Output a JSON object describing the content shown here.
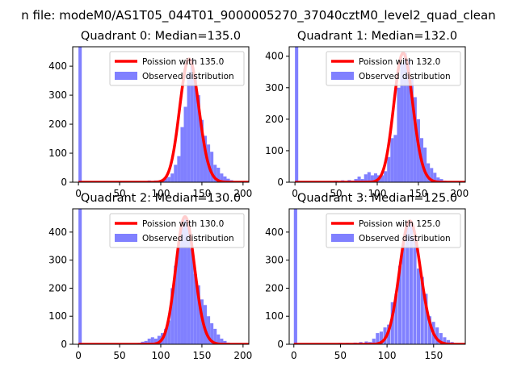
{
  "figure": {
    "suptitle": "n file: modeM0/AS1T05_044T01_9000005270_37040cztM0_level2_quad_clean"
  },
  "colors": {
    "hist": "#8080ff",
    "poisson": "#ff0000",
    "axis": "#000000"
  },
  "chart_data": [
    {
      "type": "bar",
      "title": "Quadrant 0: Median=135.0",
      "xlabel": "",
      "ylabel": "",
      "xlim": [
        -7,
        207
      ],
      "ylim": [
        0,
        467
      ],
      "xticks": [
        0,
        50,
        100,
        150,
        200
      ],
      "yticks": [
        0,
        100,
        200,
        300,
        400
      ],
      "legend_position": "upper right",
      "legend": [
        "Poission with 135.0",
        "Observed distribution"
      ],
      "poisson_mean": 135,
      "hist_bin_width": 4,
      "hist_bins": [
        [
          0,
          467
        ],
        [
          84,
          6
        ],
        [
          92,
          6
        ],
        [
          96,
          3
        ],
        [
          100,
          8
        ],
        [
          104,
          13
        ],
        [
          108,
          18
        ],
        [
          112,
          30
        ],
        [
          116,
          60
        ],
        [
          120,
          90
        ],
        [
          124,
          190
        ],
        [
          128,
          260
        ],
        [
          132,
          380
        ],
        [
          136,
          425
        ],
        [
          140,
          370
        ],
        [
          144,
          300
        ],
        [
          148,
          215
        ],
        [
          152,
          160
        ],
        [
          156,
          130
        ],
        [
          160,
          105
        ],
        [
          164,
          60
        ],
        [
          168,
          50
        ],
        [
          172,
          30
        ],
        [
          176,
          20
        ],
        [
          180,
          12
        ],
        [
          184,
          7
        ],
        [
          188,
          4
        ],
        [
          192,
          3
        ]
      ]
    },
    {
      "type": "bar",
      "title": "Quadrant 1: Median=132.0",
      "xlabel": "",
      "ylabel": "",
      "xlim": [
        -7,
        207
      ],
      "ylim": [
        0,
        430
      ],
      "xticks": [
        0,
        50,
        100,
        150,
        200
      ],
      "yticks": [
        0,
        100,
        200,
        300,
        400
      ],
      "legend_position": "upper right",
      "legend": [
        "Poission with 132.0",
        "Observed distribution"
      ],
      "poisson_mean": 132,
      "hist_bin_width": 4,
      "hist_bins": [
        [
          0,
          430
        ],
        [
          40,
          4
        ],
        [
          48,
          5
        ],
        [
          56,
          6
        ],
        [
          64,
          7
        ],
        [
          68,
          5
        ],
        [
          72,
          10
        ],
        [
          76,
          18
        ],
        [
          80,
          10
        ],
        [
          84,
          25
        ],
        [
          88,
          32
        ],
        [
          92,
          22
        ],
        [
          96,
          28
        ],
        [
          100,
          22
        ],
        [
          104,
          22
        ],
        [
          108,
          35
        ],
        [
          112,
          80
        ],
        [
          116,
          140
        ],
        [
          120,
          150
        ],
        [
          124,
          300
        ],
        [
          128,
          380
        ],
        [
          132,
          410
        ],
        [
          136,
          390
        ],
        [
          140,
          330
        ],
        [
          144,
          270
        ],
        [
          148,
          200
        ],
        [
          152,
          140
        ],
        [
          156,
          110
        ],
        [
          160,
          60
        ],
        [
          164,
          45
        ],
        [
          168,
          30
        ],
        [
          172,
          15
        ],
        [
          176,
          10
        ],
        [
          180,
          5
        ]
      ]
    },
    {
      "type": "bar",
      "title": "Quadrant 2: Median=130.0",
      "xlabel": "",
      "ylabel": "",
      "xlim": [
        -7,
        207
      ],
      "ylim": [
        0,
        483
      ],
      "xticks": [
        0,
        50,
        100,
        150,
        200
      ],
      "yticks": [
        0,
        100,
        200,
        300,
        400
      ],
      "legend_position": "upper right",
      "legend": [
        "Poission with 130.0",
        "Observed distribution"
      ],
      "poisson_mean": 130,
      "hist_bin_width": 4,
      "hist_bins": [
        [
          0,
          483
        ],
        [
          72,
          5
        ],
        [
          76,
          9
        ],
        [
          80,
          12
        ],
        [
          84,
          20
        ],
        [
          88,
          25
        ],
        [
          92,
          20
        ],
        [
          96,
          30
        ],
        [
          100,
          40
        ],
        [
          104,
          55
        ],
        [
          108,
          85
        ],
        [
          112,
          200
        ],
        [
          116,
          280
        ],
        [
          120,
          360
        ],
        [
          124,
          440
        ],
        [
          128,
          455
        ],
        [
          132,
          430
        ],
        [
          136,
          340
        ],
        [
          140,
          250
        ],
        [
          144,
          210
        ],
        [
          148,
          160
        ],
        [
          152,
          140
        ],
        [
          156,
          100
        ],
        [
          160,
          75
        ],
        [
          164,
          55
        ],
        [
          168,
          35
        ],
        [
          172,
          20
        ],
        [
          176,
          12
        ],
        [
          180,
          6
        ],
        [
          184,
          4
        ]
      ]
    },
    {
      "type": "bar",
      "title": "Quadrant 3: Median=125.0",
      "xlabel": "",
      "ylabel": "",
      "xlim": [
        -5,
        184
      ],
      "ylim": [
        0,
        483
      ],
      "xticks": [
        0,
        50,
        100,
        150
      ],
      "yticks": [
        0,
        100,
        200,
        300,
        400
      ],
      "legend_position": "upper right",
      "legend": [
        "Poission with 125.0",
        "Observed distribution"
      ],
      "poisson_mean": 125,
      "hist_bin_width": 3.6,
      "hist_bins": [
        [
          0,
          483
        ],
        [
          48,
          5
        ],
        [
          56,
          5
        ],
        [
          64,
          6
        ],
        [
          70,
          8
        ],
        [
          76,
          10
        ],
        [
          80,
          8
        ],
        [
          84,
          20
        ],
        [
          88,
          40
        ],
        [
          92,
          45
        ],
        [
          96,
          60
        ],
        [
          100,
          70
        ],
        [
          104,
          150
        ],
        [
          108,
          180
        ],
        [
          112,
          280
        ],
        [
          116,
          360
        ],
        [
          120,
          420
        ],
        [
          124,
          440
        ],
        [
          128,
          380
        ],
        [
          132,
          270
        ],
        [
          136,
          240
        ],
        [
          140,
          180
        ],
        [
          144,
          100
        ],
        [
          148,
          80
        ],
        [
          152,
          60
        ],
        [
          156,
          40
        ],
        [
          160,
          25
        ],
        [
          164,
          15
        ],
        [
          168,
          8
        ],
        [
          172,
          4
        ]
      ]
    }
  ]
}
